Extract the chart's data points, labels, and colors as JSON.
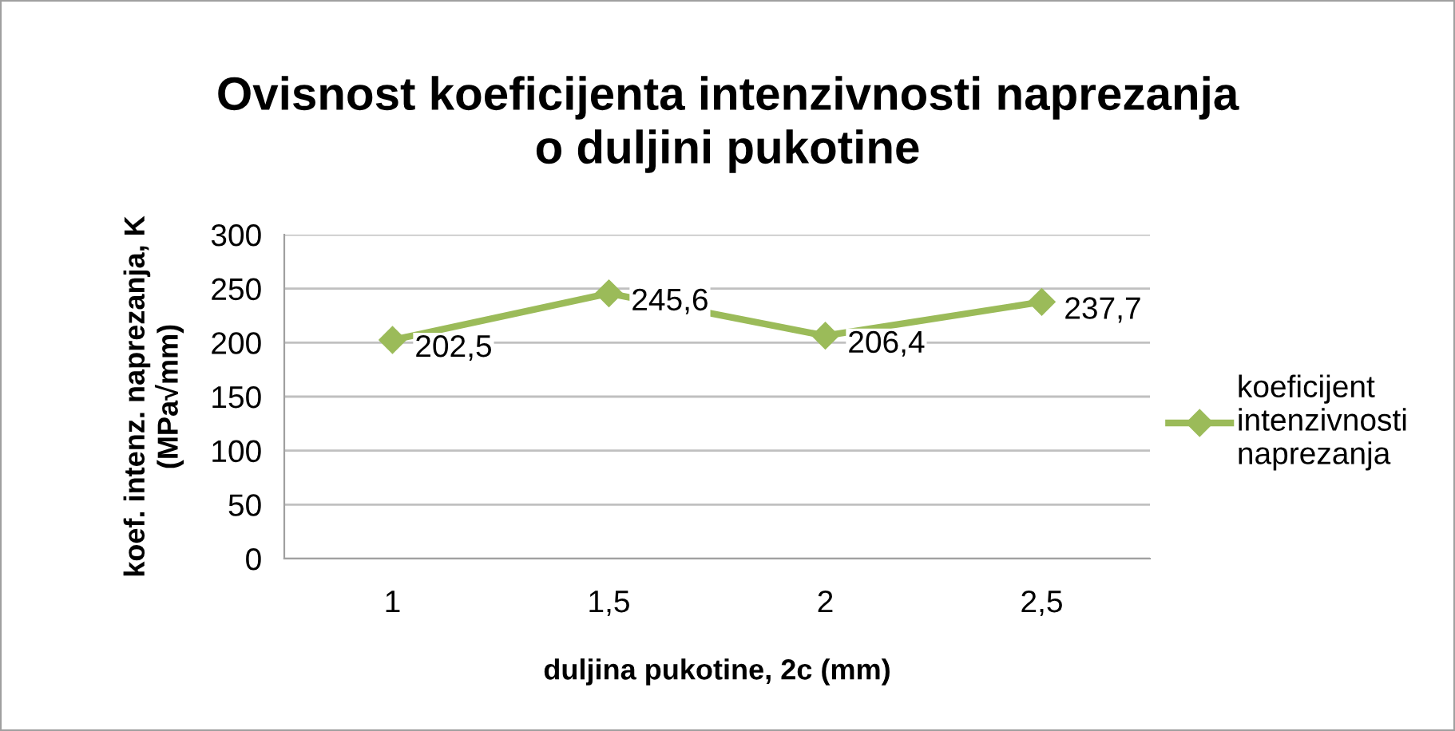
{
  "chart_data": {
    "type": "line",
    "title": "Ovisnost koeficijenta intenzivnosti naprezanja\no duljini pukotine",
    "xlabel": "duljina pukotine, 2c (mm)",
    "ylabel": "koef. intenz. naprezanja, K\n(MPa√mm)",
    "categories": [
      "1",
      "1,5",
      "2",
      "2,5"
    ],
    "series": [
      {
        "name": "koeficijent\nintenzivnosti\nnaprezanja",
        "color": "#9bbb59",
        "values": [
          202.5,
          245.6,
          206.4,
          237.7
        ],
        "value_labels": [
          "202,5",
          "245,6",
          "206,4",
          "237,7"
        ]
      }
    ],
    "ylim": [
      0,
      300
    ],
    "yticks": [
      0,
      50,
      100,
      150,
      200,
      250,
      300
    ],
    "grid": "y",
    "legend": "right",
    "marker": "diamond",
    "line_style": "solid"
  }
}
